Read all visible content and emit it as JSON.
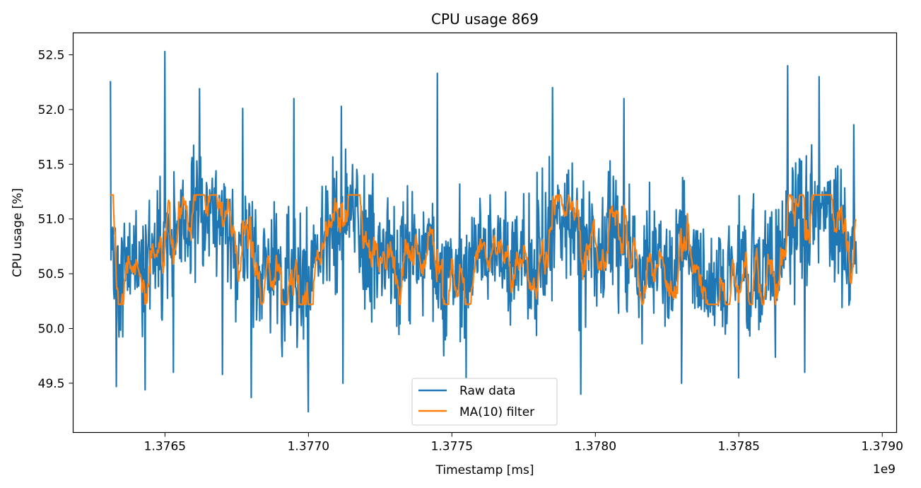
{
  "chart_data": {
    "type": "line",
    "title": "CPU usage 869",
    "xlabel": "Timestamp [ms]",
    "ylabel": "CPU usage [%]",
    "x_offset_label": "1e9",
    "x_tick_labels": [
      "1.3765",
      "1.3770",
      "1.3775",
      "1.3780",
      "1.3785",
      "1.3790"
    ],
    "x_ticks": [
      1.3765,
      1.377,
      1.3775,
      1.378,
      1.3785,
      1.379
    ],
    "y_tick_labels": [
      "49.5",
      "50.0",
      "50.5",
      "51.0",
      "51.5",
      "52.0",
      "52.5"
    ],
    "y_ticks": [
      49.5,
      50.0,
      50.5,
      51.0,
      51.5,
      52.0,
      52.5
    ],
    "xlim": [
      1.37618,
      1.37905
    ],
    "ylim": [
      49.05,
      52.7
    ],
    "x_range": [
      1.37631,
      1.37891
    ],
    "legend_placement": "lower center",
    "grid": false,
    "series": [
      {
        "name": "Raw data",
        "color": "#1f77b4",
        "mean": 50.7,
        "min": 49.24,
        "max": 52.53,
        "points": [
          [
            1.37631,
            52.26
          ],
          [
            1.37633,
            49.47
          ],
          [
            1.37643,
            49.44
          ],
          [
            1.3765,
            52.53
          ],
          [
            1.37653,
            49.6
          ],
          [
            1.37662,
            52.19
          ],
          [
            1.3767,
            49.58
          ],
          [
            1.37677,
            52.01
          ],
          [
            1.3768,
            49.37
          ],
          [
            1.377,
            49.24
          ],
          [
            1.37695,
            52.1
          ],
          [
            1.37712,
            49.5
          ],
          [
            1.37745,
            52.33
          ],
          [
            1.37755,
            49.55
          ],
          [
            1.37785,
            52.2
          ],
          [
            1.37795,
            49.4
          ],
          [
            1.3781,
            52.1
          ],
          [
            1.3783,
            49.5
          ],
          [
            1.3785,
            49.55
          ],
          [
            1.37867,
            52.4
          ],
          [
            1.37873,
            49.6
          ],
          [
            1.37878,
            52.3
          ],
          [
            1.3789,
            51.86
          ],
          [
            1.37891,
            50.5
          ]
        ]
      },
      {
        "name": "MA(10) filter",
        "color": "#ff7f0e",
        "mean": 50.7,
        "min": 50.22,
        "max": 51.22,
        "points": [
          [
            1.37631,
            50.88
          ],
          [
            1.3764,
            51.1
          ],
          [
            1.3765,
            50.4
          ],
          [
            1.37657,
            51.2
          ],
          [
            1.37684,
            50.22
          ],
          [
            1.37712,
            51.22
          ],
          [
            1.3778,
            51.0
          ],
          [
            1.3785,
            50.4
          ],
          [
            1.37891,
            50.6
          ]
        ]
      }
    ]
  }
}
